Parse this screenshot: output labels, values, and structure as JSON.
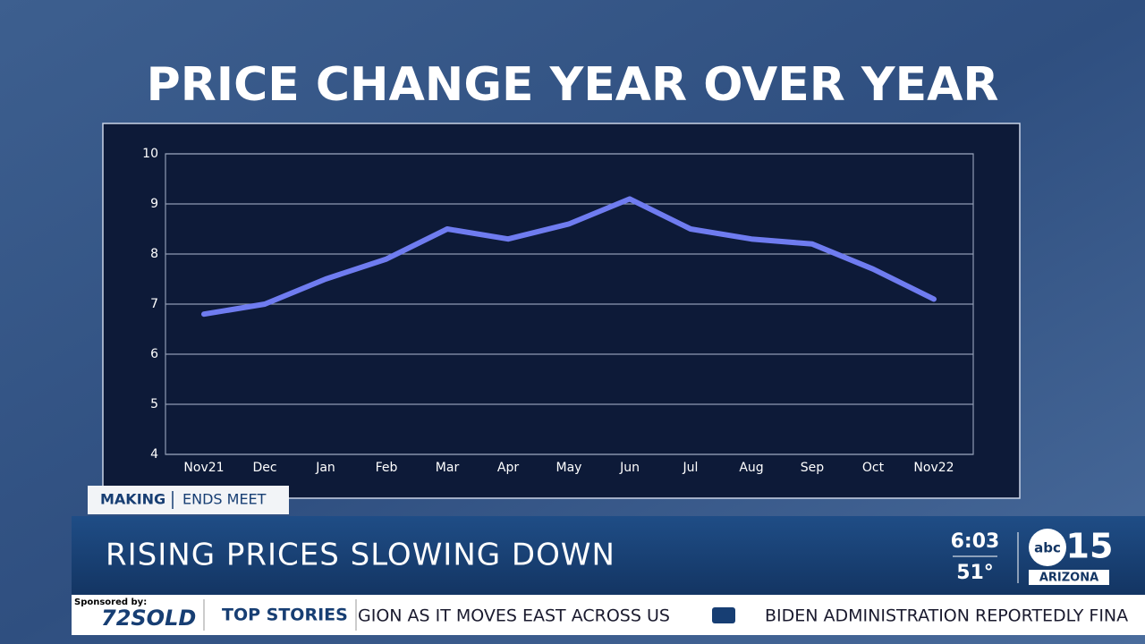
{
  "chart_data": {
    "type": "line",
    "title": "PRICE CHANGE YEAR OVER YEAR",
    "categories": [
      "Nov21",
      "Dec",
      "Jan",
      "Feb",
      "Mar",
      "Apr",
      "May",
      "Jun",
      "Jul",
      "Aug",
      "Sep",
      "Oct",
      "Nov22"
    ],
    "values": [
      6.8,
      7.0,
      7.5,
      7.9,
      8.5,
      8.3,
      8.6,
      9.1,
      8.5,
      8.3,
      8.2,
      7.7,
      7.1
    ],
    "color": "#6f7cf0",
    "ylim": [
      4,
      10
    ],
    "yticks": [
      4,
      5,
      6,
      7,
      8,
      9,
      10
    ],
    "grid": true
  },
  "lower_third": {
    "tag": [
      "MAKING",
      "ENDS MEET"
    ],
    "headline": "RISING PRICES SLOWING DOWN",
    "time": "6:03",
    "temperature": "51°",
    "logo": {
      "network": "abc",
      "channel": "15",
      "region": "ARIZONA"
    }
  },
  "ticker": {
    "sponsor_label": "Sponsored by:",
    "sponsor": "72SOLD",
    "section": "TOP STORIES",
    "items": [
      "GION AS IT MOVES EAST ACROSS US",
      "BIDEN ADMINISTRATION REPORTEDLY FINA"
    ]
  }
}
